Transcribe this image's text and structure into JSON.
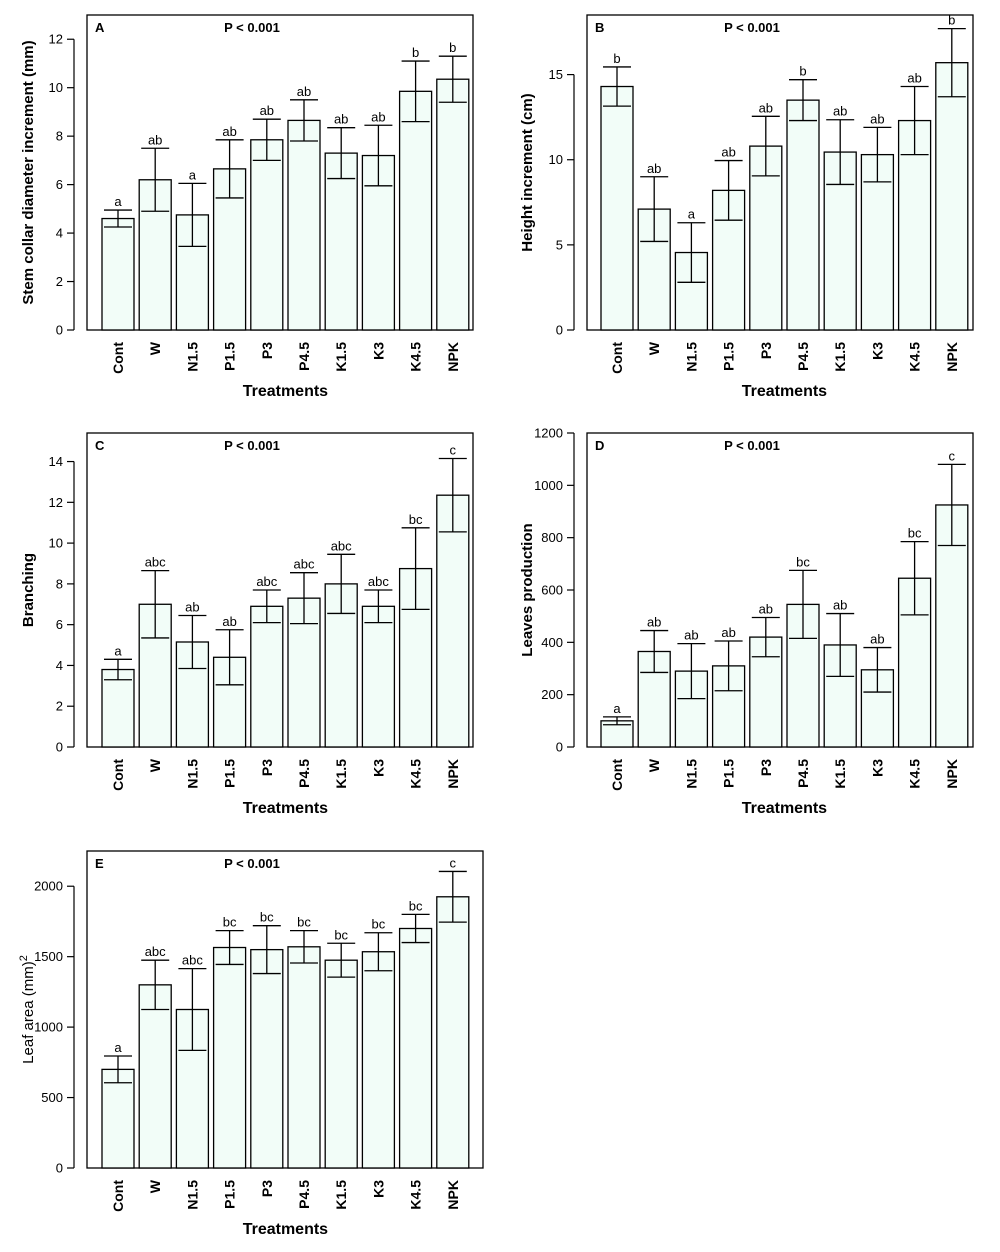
{
  "colors": {
    "bar_fill": "#f2fdf8",
    "stroke": "#000000",
    "background": "#ffffff"
  },
  "chart_data": [
    {
      "type": "bar",
      "panel": "A",
      "annotation": "P < 0.001",
      "xlabel": "Treatments",
      "ylabel": "Stem collar diameter increment (mm)",
      "ylim": [
        0,
        13
      ],
      "yticks": [
        0,
        2,
        4,
        6,
        8,
        10,
        12
      ],
      "categories": [
        "Cont",
        "W",
        "N1.5",
        "P1.5",
        "P3",
        "P4.5",
        "K1.5",
        "K3",
        "K4.5",
        "NPK"
      ],
      "values": [
        4.6,
        6.2,
        4.75,
        6.65,
        7.85,
        8.65,
        7.3,
        7.2,
        9.85,
        10.35
      ],
      "errors": [
        0.35,
        1.3,
        1.3,
        1.2,
        0.85,
        0.85,
        1.05,
        1.25,
        1.25,
        0.95
      ],
      "significance": [
        "a",
        "ab",
        "a",
        "ab",
        "ab",
        "ab",
        "ab",
        "ab",
        "b",
        "b"
      ]
    },
    {
      "type": "bar",
      "panel": "B",
      "annotation": "P < 0.001",
      "xlabel": "Treatments",
      "ylabel": "Height increment (cm)",
      "ylim": [
        0,
        18.5
      ],
      "yticks": [
        0,
        5,
        10,
        15
      ],
      "categories": [
        "Cont",
        "W",
        "N1.5",
        "P1.5",
        "P3",
        "P4.5",
        "K1.5",
        "K3",
        "K4.5",
        "NPK"
      ],
      "values": [
        14.3,
        7.1,
        4.55,
        8.2,
        10.8,
        13.5,
        10.45,
        10.3,
        12.3,
        15.7
      ],
      "errors": [
        1.15,
        1.9,
        1.75,
        1.75,
        1.75,
        1.2,
        1.9,
        1.6,
        2.0,
        2.0
      ],
      "significance": [
        "b",
        "ab",
        "a",
        "ab",
        "ab",
        "b",
        "ab",
        "ab",
        "ab",
        "b"
      ]
    },
    {
      "type": "bar",
      "panel": "C",
      "annotation": "P < 0.001",
      "xlabel": "Treatments",
      "ylabel": "Branching",
      "ylim": [
        0,
        15.4
      ],
      "yticks": [
        0,
        2,
        4,
        6,
        8,
        10,
        12,
        14
      ],
      "categories": [
        "Cont",
        "W",
        "N1.5",
        "P1.5",
        "P3",
        "P4.5",
        "K1.5",
        "K3",
        "K4.5",
        "NPK"
      ],
      "values": [
        3.8,
        7.0,
        5.15,
        4.4,
        6.9,
        7.3,
        8.0,
        6.9,
        8.75,
        12.35
      ],
      "errors": [
        0.5,
        1.65,
        1.3,
        1.35,
        0.8,
        1.25,
        1.45,
        0.8,
        2.0,
        1.8
      ],
      "significance": [
        "a",
        "abc",
        "ab",
        "ab",
        "abc",
        "abc",
        "abc",
        "abc",
        "bc",
        "c"
      ]
    },
    {
      "type": "bar",
      "panel": "D",
      "annotation": "P < 0.001",
      "xlabel": "Treatments",
      "ylabel": "Leaves production",
      "ylim": [
        0,
        1200
      ],
      "yticks": [
        0,
        200,
        400,
        600,
        800,
        1000,
        1200
      ],
      "categories": [
        "Cont",
        "W",
        "N1.5",
        "P1.5",
        "P3",
        "P4.5",
        "K1.5",
        "K3",
        "K4.5",
        "NPK"
      ],
      "values": [
        100,
        365,
        290,
        310,
        420,
        545,
        390,
        295,
        645,
        925
      ],
      "errors": [
        15,
        80,
        105,
        95,
        75,
        130,
        120,
        85,
        140,
        155
      ],
      "significance": [
        "a",
        "ab",
        "ab",
        "ab",
        "ab",
        "bc",
        "ab",
        "ab",
        "bc",
        "c"
      ]
    },
    {
      "type": "bar",
      "panel": "E",
      "annotation": "P < 0.001",
      "xlabel": "Treatments",
      "ylabel": "Leaf area (mm)",
      "ylabel_superscript": "2",
      "ylim": [
        0,
        2250
      ],
      "yticks": [
        0,
        500,
        1000,
        1500,
        2000
      ],
      "categories": [
        "Cont",
        "W",
        "N1.5",
        "P1.5",
        "P3",
        "P4.5",
        "K1.5",
        "K3",
        "K4.5",
        "NPK"
      ],
      "values": [
        700,
        1300,
        1125,
        1565,
        1550,
        1570,
        1475,
        1535,
        1700,
        1925
      ],
      "errors": [
        95,
        175,
        290,
        120,
        170,
        115,
        120,
        135,
        100,
        180
      ],
      "significance": [
        "a",
        "abc",
        "abc",
        "bc",
        "bc",
        "bc",
        "bc",
        "bc",
        "bc",
        "c"
      ]
    }
  ]
}
